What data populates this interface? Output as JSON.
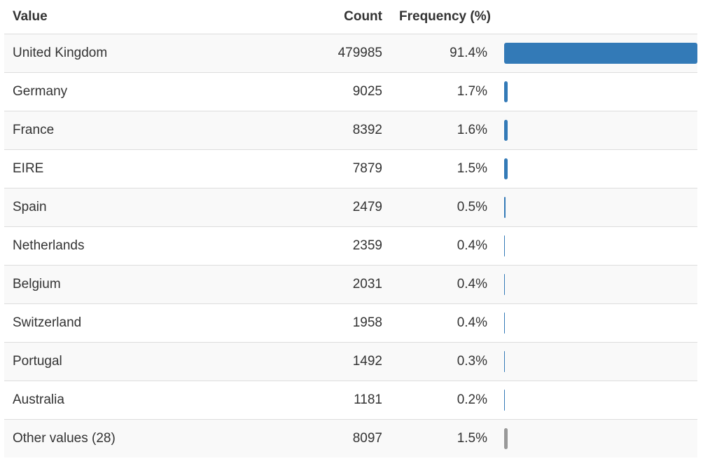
{
  "headers": {
    "value": "Value",
    "count": "Count",
    "frequency": "Frequency (%)"
  },
  "colors": {
    "bar": "#337ab7",
    "other_bar": "#999999"
  },
  "rows": [
    {
      "value": "United Kingdom",
      "count": "479985",
      "frequency": "91.4%",
      "pct": 91.4,
      "other": false
    },
    {
      "value": "Germany",
      "count": "9025",
      "frequency": "1.7%",
      "pct": 1.7,
      "other": false
    },
    {
      "value": "France",
      "count": "8392",
      "frequency": "1.6%",
      "pct": 1.6,
      "other": false
    },
    {
      "value": "EIRE",
      "count": "7879",
      "frequency": "1.5%",
      "pct": 1.5,
      "other": false
    },
    {
      "value": "Spain",
      "count": "2479",
      "frequency": "0.5%",
      "pct": 0.5,
      "other": false
    },
    {
      "value": "Netherlands",
      "count": "2359",
      "frequency": "0.4%",
      "pct": 0.4,
      "other": false
    },
    {
      "value": "Belgium",
      "count": "2031",
      "frequency": "0.4%",
      "pct": 0.4,
      "other": false
    },
    {
      "value": "Switzerland",
      "count": "1958",
      "frequency": "0.4%",
      "pct": 0.4,
      "other": false
    },
    {
      "value": "Portugal",
      "count": "1492",
      "frequency": "0.3%",
      "pct": 0.3,
      "other": false
    },
    {
      "value": "Australia",
      "count": "1181",
      "frequency": "0.2%",
      "pct": 0.2,
      "other": false
    },
    {
      "value": "Other values (28)",
      "count": "8097",
      "frequency": "1.5%",
      "pct": 1.5,
      "other": true
    }
  ]
}
